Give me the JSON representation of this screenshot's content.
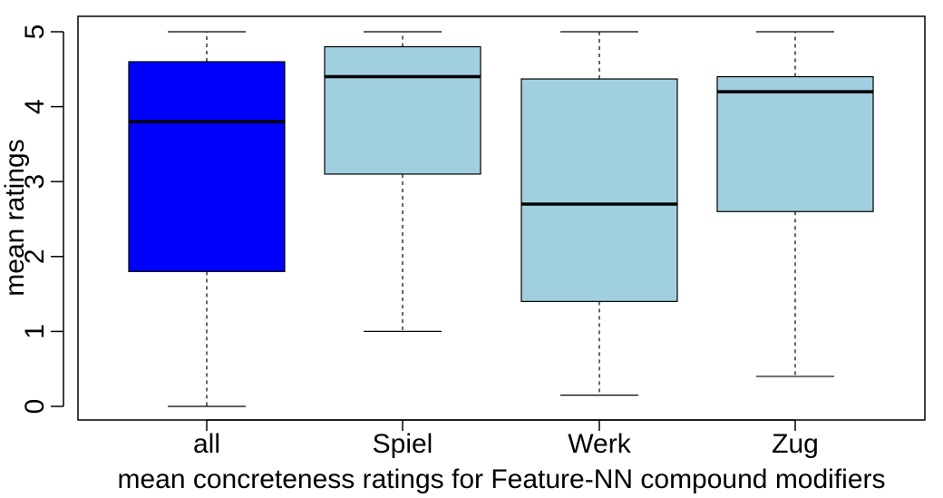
{
  "chart_data": {
    "type": "boxplot",
    "title": "",
    "xlabel": "mean concreteness ratings for Feature-NN compound modifiers",
    "ylabel": "mean ratings",
    "ylim": [
      0,
      5
    ],
    "yticks": [
      "0",
      "1",
      "2",
      "3",
      "4",
      "5"
    ],
    "grid": false,
    "categories": [
      "all",
      "Spiel",
      "Werk",
      "Zug"
    ],
    "boxes": [
      {
        "category": "all",
        "min": 0.0,
        "q1": 1.8,
        "median": 3.8,
        "q3": 4.6,
        "max": 5.0,
        "color": "#0000FF"
      },
      {
        "category": "Spiel",
        "min": 1.0,
        "q1": 3.1,
        "median": 4.4,
        "q3": 4.8,
        "max": 5.0,
        "color": "#A0CFE0"
      },
      {
        "category": "Werk",
        "min": 0.15,
        "q1": 1.4,
        "median": 2.7,
        "q3": 4.37,
        "max": 5.0,
        "color": "#A0CFE0"
      },
      {
        "category": "Zug",
        "min": 0.4,
        "q1": 2.6,
        "median": 4.2,
        "q3": 4.4,
        "max": 5.0,
        "color": "#A0CFE0"
      }
    ]
  }
}
